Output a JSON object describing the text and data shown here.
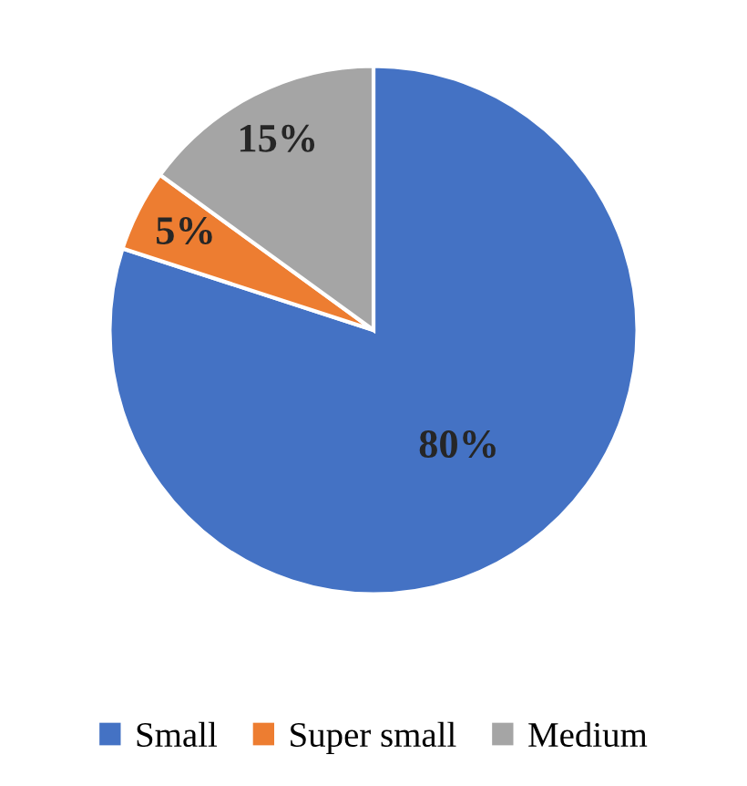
{
  "chart_data": {
    "type": "pie",
    "categories": [
      "Small",
      "Super small",
      "Medium"
    ],
    "values": [
      80,
      5,
      15
    ],
    "colors": [
      "#4472c4",
      "#ed7d31",
      "#a5a5a5"
    ],
    "value_labels": [
      "80%",
      "5%",
      "15%"
    ],
    "legend": "bottom"
  }
}
